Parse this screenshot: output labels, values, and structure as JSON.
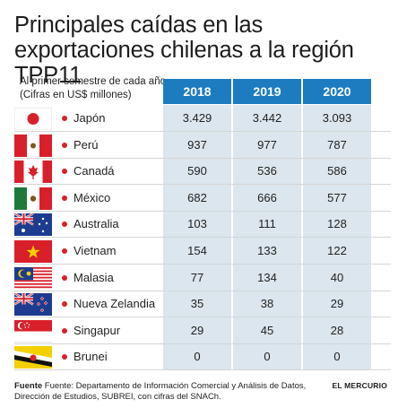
{
  "title": "Principales caídas en las exportaciones chilenas a la región TPP11",
  "subtitle": "Al primer semestre de cada año (Cifras en US$ millones)",
  "colors": {
    "header": "#1d7cbf",
    "cell_bg": "#dbe6ee",
    "bullet": "#d9202a",
    "title_bar": "#1d7cbf"
  },
  "chart_data": {
    "type": "table",
    "columns": [
      "2018",
      "2019",
      "2020"
    ],
    "rows": [
      {
        "country": "Japón",
        "flag": "japan-flag",
        "values": [
          "3.429",
          "3.442",
          "3.093"
        ]
      },
      {
        "country": "Perú",
        "flag": "peru-flag",
        "values": [
          "937",
          "977",
          "787"
        ]
      },
      {
        "country": "Canadá",
        "flag": "canada-flag",
        "values": [
          "590",
          "536",
          "586"
        ]
      },
      {
        "country": "México",
        "flag": "mexico-flag",
        "values": [
          "682",
          "666",
          "577"
        ]
      },
      {
        "country": "Australia",
        "flag": "australia-flag",
        "values": [
          "103",
          "111",
          "128"
        ]
      },
      {
        "country": "Vietnam",
        "flag": "vietnam-flag",
        "values": [
          "154",
          "133",
          "122"
        ]
      },
      {
        "country": "Malasia",
        "flag": "malaysia-flag",
        "values": [
          "77",
          "134",
          "40"
        ]
      },
      {
        "country": "Nueva Zelandia",
        "flag": "new-zealand-flag",
        "values": [
          "35",
          "38",
          "29"
        ]
      },
      {
        "country": "Singapur",
        "flag": "singapore-flag",
        "values": [
          "29",
          "45",
          "28"
        ]
      },
      {
        "country": "Brunei",
        "flag": "brunei-flag",
        "values": [
          "0",
          "0",
          "0"
        ]
      }
    ]
  },
  "source": {
    "label": "Fuente",
    "text": "Fuente: Departamento de Información Comercial y Análisis de Datos, Dirección de Estudios, SUBREI, con cifras del SNACh."
  },
  "brand": "EL MERCURIO"
}
